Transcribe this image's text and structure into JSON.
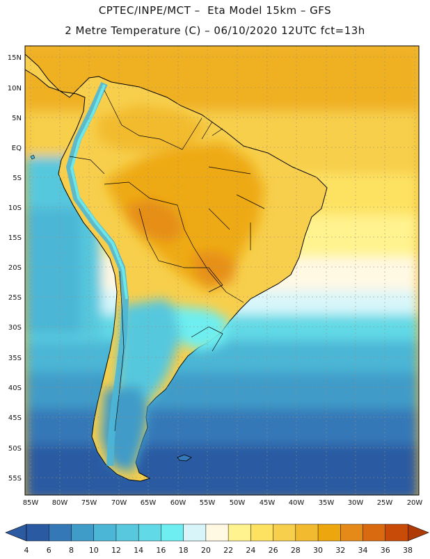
{
  "title": {
    "line1": "CPTEC/INPE/MCT –  Eta Model 15km – GFS",
    "line2": "2 Metre Temperature (C) – 06/10/2020 12UTC fct=13h"
  },
  "map": {
    "region": "South America",
    "latitude_labels": [
      "15N",
      "10N",
      "5N",
      "EQ",
      "5S",
      "10S",
      "15S",
      "20S",
      "25S",
      "30S",
      "35S",
      "40S",
      "45S",
      "50S",
      "55S"
    ],
    "longitude_labels": [
      "85W",
      "80W",
      "75W",
      "70W",
      "65W",
      "60W",
      "55W",
      "50W",
      "45W",
      "40W",
      "35W",
      "30W",
      "25W",
      "20W"
    ]
  },
  "legend": {
    "values": [
      "4",
      "6",
      "8",
      "10",
      "12",
      "14",
      "16",
      "18",
      "20",
      "22",
      "24",
      "26",
      "28",
      "30",
      "32",
      "34",
      "36",
      "38"
    ],
    "colors": [
      "#2a5aa2",
      "#3478b8",
      "#3f9bc8",
      "#4cb6d6",
      "#57c8de",
      "#62d9e6",
      "#6eeef0",
      "#d8f6fa",
      "#fff8e3",
      "#fff38f",
      "#fde262",
      "#f7cf4c",
      "#f2bb2f",
      "#eda60d",
      "#e58a18",
      "#d96a10",
      "#c84b08"
    ],
    "left_arrow_color": "#2c5aa0",
    "right_arrow_color": "#b03a05"
  }
}
